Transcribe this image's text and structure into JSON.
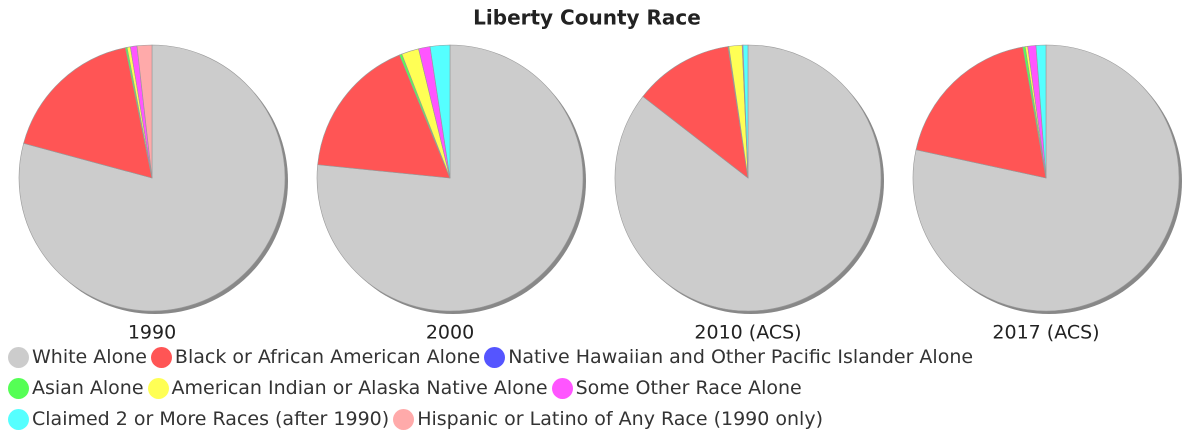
{
  "chart_data": {
    "type": "pie",
    "title": "Liberty County Race",
    "categories": [
      "White Alone",
      "Black or African American Alone",
      "Native Hawaiian and Other Pacific Islander Alone",
      "Asian Alone",
      "American Indian or Alaska Native Alone",
      "Some Other Race Alone",
      "Claimed 2 or More Races (after 1990)",
      "Hispanic or Latino of Any Race (1990 only)"
    ],
    "colors": [
      "#cccccc",
      "#ff5555",
      "#5555ff",
      "#55ff55",
      "#ffff55",
      "#ff55ff",
      "#55ffff",
      "#ffaaaa"
    ],
    "pies": [
      {
        "name": "1990",
        "values": [
          79.2,
          17.6,
          0,
          0.2,
          0.4,
          0.8,
          0,
          1.8
        ]
      },
      {
        "name": "2000",
        "values": [
          76.6,
          17.2,
          0,
          0.3,
          2.1,
          1.4,
          2.4,
          0
        ]
      },
      {
        "name": "2010 (ACS)",
        "values": [
          85.5,
          12.1,
          0,
          0.1,
          1.6,
          0.1,
          0.6,
          0
        ]
      },
      {
        "name": "2017 (ACS)",
        "values": [
          78.4,
          18.8,
          0,
          0.3,
          0.3,
          1.0,
          1.2,
          0
        ]
      }
    ]
  }
}
